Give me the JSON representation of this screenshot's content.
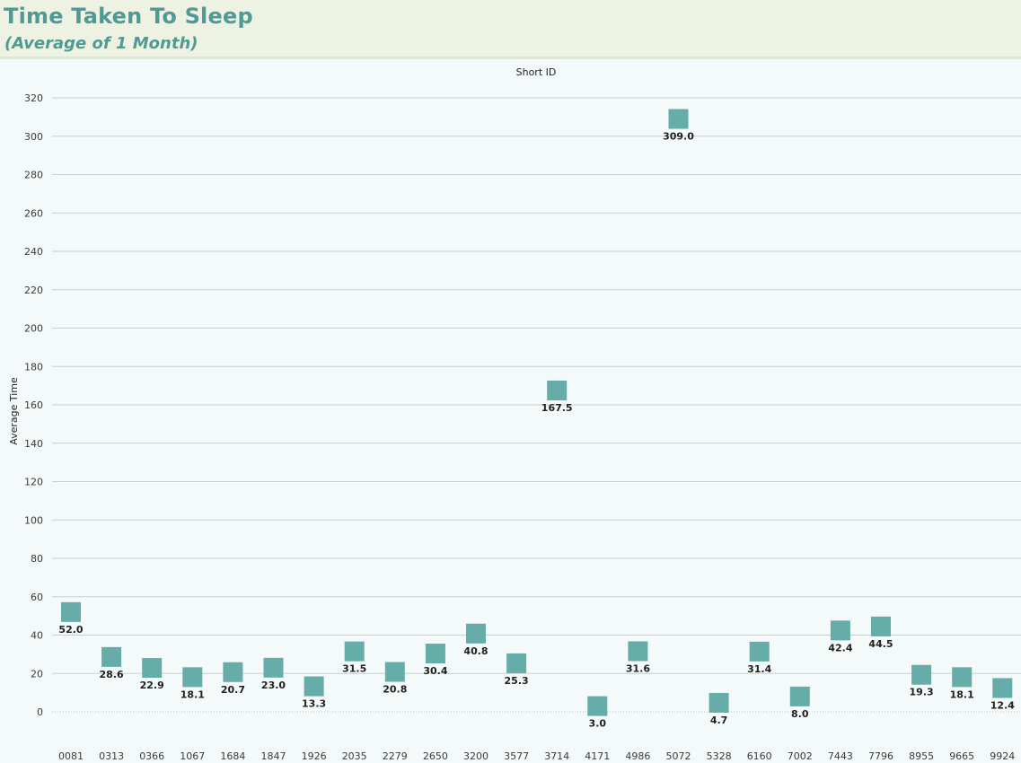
{
  "header": {
    "title": "Time Taken To Sleep",
    "subtitle": "(Average of 1 Month)"
  },
  "chart_data": {
    "type": "scatter",
    "marker": "square",
    "color": "#5ea8a3",
    "xlabel": "Short ID",
    "ylabel": "Average Time",
    "ylim": [
      0,
      320
    ],
    "yticks": [
      0,
      20,
      40,
      60,
      80,
      100,
      120,
      140,
      160,
      180,
      200,
      220,
      240,
      260,
      280,
      300,
      320
    ],
    "grid": true,
    "categories": [
      "0081",
      "0313",
      "0366",
      "1067",
      "1684",
      "1847",
      "1926",
      "2035",
      "2279",
      "2650",
      "3200",
      "3577",
      "3714",
      "4171",
      "4986",
      "5072",
      "5328",
      "6160",
      "7002",
      "7443",
      "7796",
      "8955",
      "9665",
      "9924"
    ],
    "values": [
      52.0,
      28.6,
      22.9,
      18.1,
      20.7,
      23.0,
      13.3,
      31.5,
      20.8,
      30.4,
      40.8,
      25.3,
      167.5,
      3.0,
      31.6,
      309.0,
      4.7,
      31.4,
      8.0,
      42.4,
      44.5,
      19.3,
      18.1,
      12.4
    ],
    "value_labels": [
      "52.0",
      "28.6",
      "22.9",
      "18.1",
      "20.7",
      "23.0",
      "13.3",
      "31.5",
      "20.8",
      "30.4",
      "40.8",
      "25.3",
      "167.5",
      "3.0",
      "31.6",
      "309.0",
      "4.7",
      "31.4",
      "8.0",
      "42.4",
      "44.5",
      "19.3",
      "18.1",
      "12.4"
    ]
  }
}
